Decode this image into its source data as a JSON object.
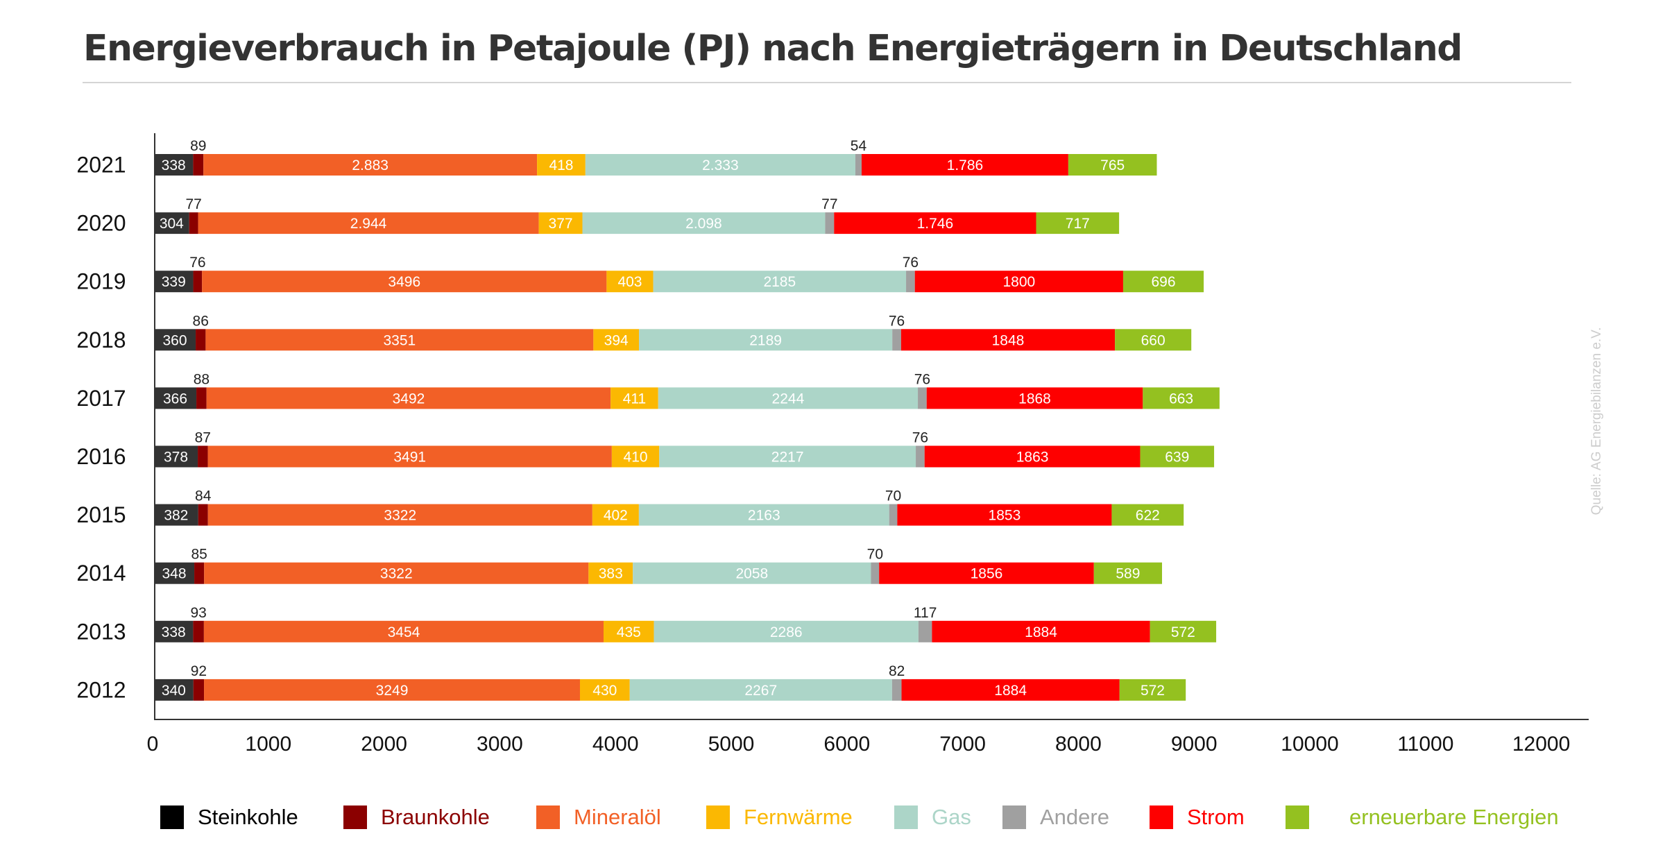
{
  "title": "Energieverbrauch in Petajoule (PJ) nach Energieträgern in Deutschland",
  "source": "Quelle: AG Energiebilanzen e.V.",
  "chart_data": {
    "type": "bar",
    "orientation": "horizontal",
    "stacked": true,
    "title": "Energieverbrauch in Petajoule (PJ) nach Energieträgern in Deutschland",
    "xlabel": "",
    "ylabel": "",
    "xlim": [
      0,
      12000
    ],
    "x_ticks": [
      "0",
      "1000",
      "2000",
      "3000",
      "4000",
      "5000",
      "6000",
      "7000",
      "8000",
      "9000",
      "10000",
      "11000",
      "12000"
    ],
    "grid": false,
    "legend_position": "bottom",
    "categories": [
      "2021",
      "2020",
      "2019",
      "2018",
      "2017",
      "2016",
      "2015",
      "2014",
      "2013",
      "2012"
    ],
    "series": [
      {
        "name": "Steinkohle",
        "color": "#333333",
        "label_color": "#ffffff",
        "label_position": "inside",
        "values": [
          338,
          304,
          339,
          360,
          366,
          378,
          382,
          348,
          338,
          340
        ],
        "labels": [
          "338",
          "304",
          "339",
          "360",
          "366",
          "378",
          "382",
          "348",
          "338",
          "340"
        ]
      },
      {
        "name": "Braunkohle",
        "color": "#8b0000",
        "label_color": "#222222",
        "label_position": "above",
        "values": [
          89,
          77,
          76,
          86,
          88,
          87,
          84,
          85,
          93,
          92
        ],
        "labels": [
          "89",
          "77",
          "76",
          "86",
          "88",
          "87",
          "84",
          "85",
          "93",
          "92"
        ]
      },
      {
        "name": "Mineralöl",
        "color": "#f26026",
        "label_color": "#ffffff",
        "label_position": "inside",
        "values": [
          2883,
          2944,
          3496,
          3351,
          3492,
          3491,
          3322,
          3322,
          3454,
          3249
        ],
        "labels": [
          "2.883",
          "2.944",
          "3496",
          "3351",
          "3492",
          "3491",
          "3322",
          "3322",
          "3454",
          "3249"
        ]
      },
      {
        "name": "Fernwärme",
        "color": "#fbb802",
        "label_color": "#ffffff",
        "label_position": "inside",
        "values": [
          418,
          377,
          403,
          394,
          411,
          410,
          402,
          383,
          435,
          430
        ],
        "labels": [
          "418",
          "377",
          "403",
          "394",
          "411",
          "410",
          "402",
          "383",
          "435",
          "430"
        ]
      },
      {
        "name": "Gas",
        "color": "#acd5c8",
        "label_color": "#ffffff",
        "label_position": "inside",
        "values": [
          2333,
          2098,
          2185,
          2189,
          2244,
          2217,
          2163,
          2058,
          2286,
          2267
        ],
        "labels": [
          "2.333",
          "2.098",
          "2185",
          "2189",
          "2244",
          "2217",
          "2163",
          "2058",
          "2286",
          "2267"
        ]
      },
      {
        "name": "Andere",
        "color": "#a0a0a0",
        "label_color": "#222222",
        "label_position": "above",
        "values": [
          54,
          77,
          76,
          76,
          76,
          76,
          70,
          70,
          117,
          82
        ],
        "labels": [
          "54",
          "77",
          "76",
          "76",
          "76",
          "76",
          "70",
          "70",
          "117",
          "82"
        ]
      },
      {
        "name": "Strom",
        "color": "#fe0000",
        "label_color": "#ffffff",
        "label_position": "inside",
        "values": [
          1786,
          1746,
          1800,
          1848,
          1868,
          1863,
          1853,
          1856,
          1884,
          1884
        ],
        "labels": [
          "1.786",
          "1.746",
          "1800",
          "1848",
          "1868",
          "1863",
          "1853",
          "1856",
          "1884",
          "1884"
        ]
      },
      {
        "name": "erneuerbare Energien",
        "color": "#94c120",
        "label_color": "#ffffff",
        "label_position": "inside",
        "values": [
          765,
          717,
          696,
          660,
          663,
          639,
          622,
          589,
          572,
          572
        ],
        "labels": [
          "765",
          "717",
          "696",
          "660",
          "663",
          "639",
          "622",
          "589",
          "572",
          "572"
        ]
      }
    ]
  },
  "legend": [
    {
      "label": "Steinkohle",
      "swatch": "#000000",
      "text_color": "#000000"
    },
    {
      "label": "Braunkohle",
      "swatch": "#8b0000",
      "text_color": "#8b0000"
    },
    {
      "label": "Mineralöl",
      "swatch": "#f26026",
      "text_color": "#f26026"
    },
    {
      "label": "Fernwärme",
      "swatch": "#fbb802",
      "text_color": "#fbb802"
    },
    {
      "label": "Gas",
      "swatch": "#acd5c8",
      "text_color": "#acd5c8"
    },
    {
      "label": "Andere",
      "swatch": "#a0a0a0",
      "text_color": "#a0a0a0"
    },
    {
      "label": "Strom",
      "swatch": "#fe0000",
      "text_color": "#fe0000"
    },
    {
      "label": "erneuerbare Energien",
      "swatch": "#94c120",
      "text_color": "#94c120"
    }
  ]
}
